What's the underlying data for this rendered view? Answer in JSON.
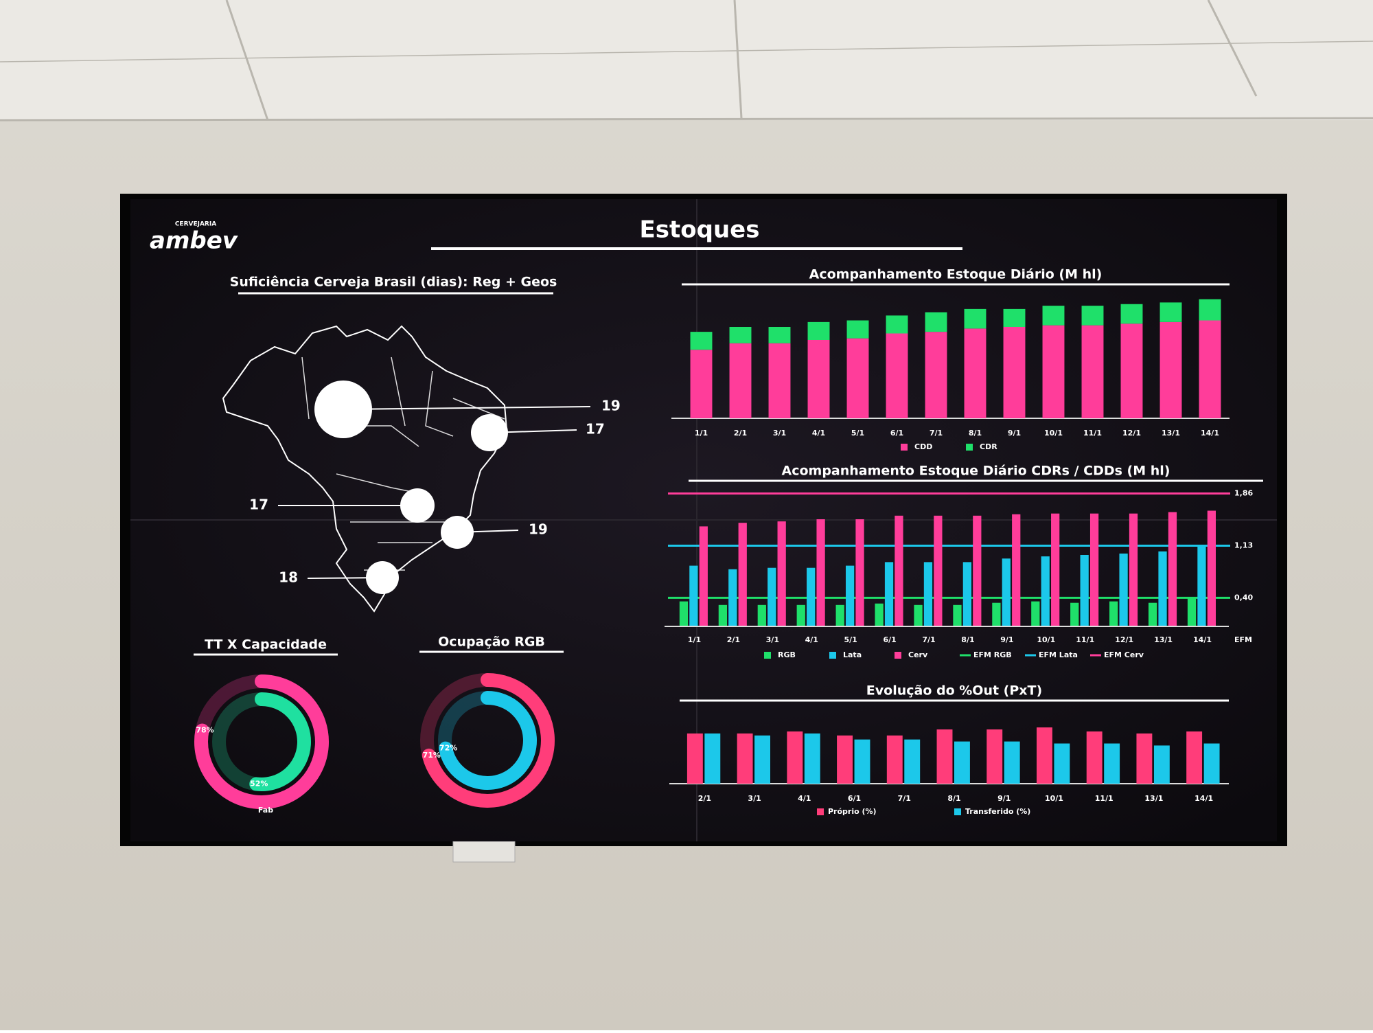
{
  "logo": {
    "small": "CERVEJARIA",
    "brand": "ambev"
  },
  "title": "Estoques",
  "map": {
    "title": "Suficiência Cerveja Brasil (dias): Reg + Geos",
    "values": [
      19,
      17,
      17,
      19,
      18
    ]
  },
  "chart_data": [
    {
      "type": "stacked_bar",
      "title": "Acompanhamento Estoque Diário (M hl)",
      "categories": [
        "1/1",
        "2/1",
        "3/1",
        "4/1",
        "5/1",
        "6/1",
        "7/1",
        "8/1",
        "9/1",
        "10/1",
        "11/1",
        "12/1",
        "13/1",
        "14/1"
      ],
      "series": [
        {
          "name": "CDD",
          "color": "#ff3d9a",
          "values": [
            2.1,
            2.3,
            2.3,
            2.4,
            2.45,
            2.6,
            2.65,
            2.75,
            2.8,
            2.85,
            2.85,
            2.9,
            2.95,
            3.0
          ]
        },
        {
          "name": "CDR",
          "color": "#1fe06a",
          "values": [
            0.55,
            0.5,
            0.5,
            0.55,
            0.55,
            0.55,
            0.6,
            0.6,
            0.55,
            0.6,
            0.6,
            0.6,
            0.6,
            0.65
          ]
        }
      ],
      "ylim": [
        0,
        4
      ]
    },
    {
      "type": "bar_line",
      "title": "Acompanhamento Estoque Diário CDRs / CDDs (M hl)",
      "categories": [
        "1/1",
        "2/1",
        "3/1",
        "4/1",
        "5/1",
        "6/1",
        "7/1",
        "8/1",
        "9/1",
        "10/1",
        "11/1",
        "12/1",
        "13/1",
        "14/1"
      ],
      "end_label": "EFM",
      "series": [
        {
          "name": "RGB",
          "color": "#1fe06a",
          "values": [
            0.35,
            0.3,
            0.3,
            0.3,
            0.3,
            0.32,
            0.3,
            0.3,
            0.33,
            0.35,
            0.33,
            0.35,
            0.33,
            0.4
          ]
        },
        {
          "name": "Lata",
          "color": "#1cc8ea",
          "values": [
            0.85,
            0.8,
            0.82,
            0.82,
            0.85,
            0.9,
            0.9,
            0.9,
            0.95,
            0.98,
            1.0,
            1.02,
            1.05,
            1.13
          ]
        },
        {
          "name": "Cerv",
          "color": "#ff3d9a",
          "values": [
            1.4,
            1.45,
            1.47,
            1.5,
            1.5,
            1.55,
            1.55,
            1.55,
            1.57,
            1.58,
            1.58,
            1.58,
            1.6,
            1.62
          ]
        }
      ],
      "lines": [
        {
          "name": "EFM RGB",
          "color": "#1fe06a",
          "value": 0.4
        },
        {
          "name": "EFM Lata",
          "color": "#1cc8ea",
          "value": 1.13
        },
        {
          "name": "EFM Cerv",
          "color": "#ff3d9a",
          "value": 1.86
        }
      ],
      "ylim": [
        0,
        2
      ],
      "yticks": [
        {
          "value": 0.4,
          "label": "0,40"
        },
        {
          "value": 1.13,
          "label": "1,13"
        },
        {
          "value": 1.86,
          "label": "1,86"
        }
      ]
    },
    {
      "type": "grouped_bar",
      "title": "Evolução do %Out (PxT)",
      "categories": [
        "2/1",
        "3/1",
        "4/1",
        "6/1",
        "7/1",
        "8/1",
        "9/1",
        "10/1",
        "11/1",
        "13/1",
        "14/1"
      ],
      "series": [
        {
          "name": "Próprio (%)",
          "color": "#ff3d7a",
          "values": [
            25,
            25,
            26,
            24,
            24,
            27,
            27,
            28,
            26,
            25,
            26
          ]
        },
        {
          "name": "Transferido (%)",
          "color": "#1cc8ea",
          "values": [
            25,
            24,
            25,
            22,
            22,
            21,
            21,
            20,
            20,
            19,
            20
          ]
        }
      ],
      "ylim": [
        0,
        40
      ]
    },
    {
      "type": "radial",
      "title": "TT X Capacidade",
      "caption": "Fab",
      "values": [
        78,
        52
      ],
      "value_labels": [
        "78%",
        "52%"
      ],
      "colors": [
        "#ff3d9a",
        "#1fe0a0"
      ]
    },
    {
      "type": "radial",
      "title": "Ocupação RGB",
      "values": [
        71,
        72
      ],
      "value_labels": [
        "71%",
        "72%"
      ],
      "colors": [
        "#ff3d7a",
        "#1cc8ea"
      ]
    }
  ]
}
